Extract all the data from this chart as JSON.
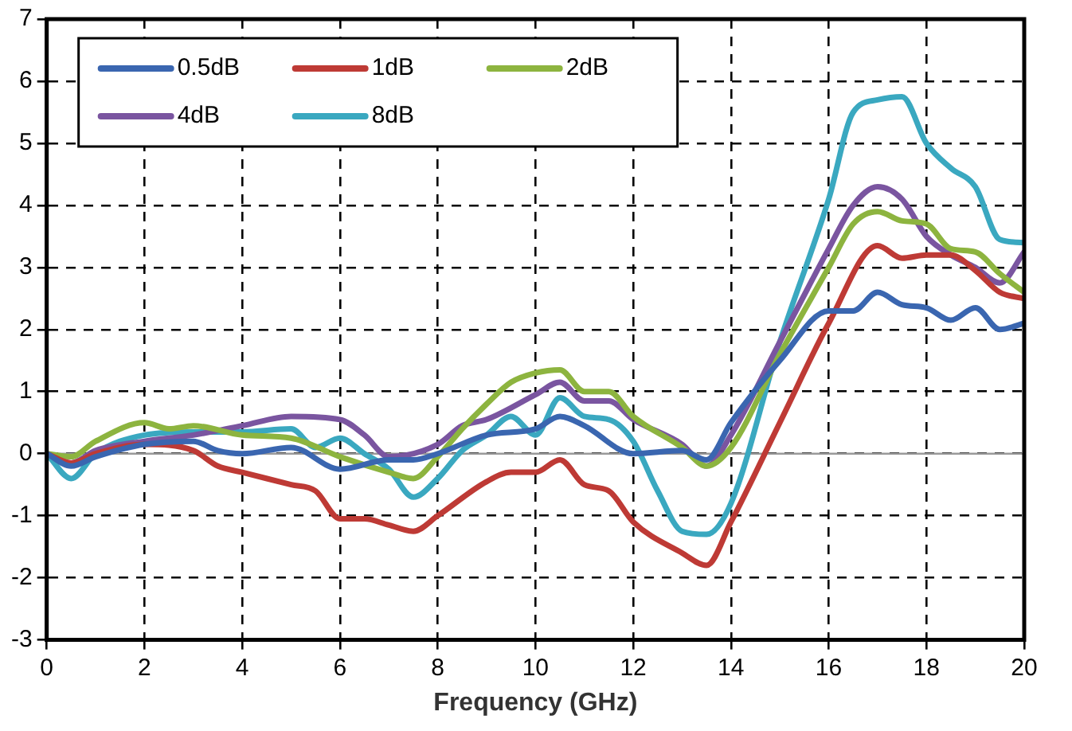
{
  "chart_data": {
    "type": "line",
    "xlabel": "Frequency (GHz)",
    "xlim": [
      0,
      20
    ],
    "xticks": [
      0,
      2,
      4,
      6,
      8,
      10,
      12,
      14,
      16,
      18,
      20
    ],
    "ylim": [
      -3,
      7
    ],
    "yticks": [
      -3,
      -2,
      -1,
      0,
      1,
      2,
      3,
      4,
      5,
      6,
      7
    ],
    "grid": true,
    "legend": "top left",
    "marker": "none",
    "line_style": "solid",
    "ref_lines": [
      {
        "axis": "y",
        "value": 0,
        "color": "#999999"
      }
    ],
    "series": [
      {
        "name": "0.5dB",
        "color": "#3a66b0",
        "x": [
          0,
          0.5,
          1,
          2,
          3,
          3.5,
          4,
          5,
          6,
          7,
          7.5,
          8,
          9,
          10,
          10.5,
          11,
          12,
          13,
          13.5,
          14,
          15,
          16,
          16.5,
          17,
          17.5,
          18,
          18.5,
          19,
          19.5,
          20
        ],
        "values": [
          0,
          -0.2,
          -0.05,
          0.15,
          0.2,
          0.05,
          0,
          0.1,
          -0.25,
          -0.1,
          -0.1,
          0,
          0.3,
          0.4,
          0.6,
          0.45,
          0,
          0.05,
          -0.1,
          0.5,
          1.5,
          2.3,
          2.3,
          2.6,
          2.4,
          2.35,
          2.15,
          2.35,
          2,
          2.1
        ]
      },
      {
        "name": "1dB",
        "color": "#be3a35",
        "x": [
          0,
          0.5,
          1,
          2,
          3,
          3.5,
          4,
          5,
          5.5,
          6,
          6.5,
          7,
          7.5,
          8,
          9,
          9.5,
          10,
          10.5,
          11,
          11.5,
          12,
          13,
          13.5,
          14,
          15,
          16,
          17,
          17.5,
          18,
          18.5,
          19,
          19.5,
          20
        ],
        "values": [
          0,
          -0.15,
          0,
          0.15,
          0.05,
          -0.2,
          -0.3,
          -0.5,
          -0.6,
          -1.05,
          -1.05,
          -1.15,
          -1.25,
          -1,
          -0.45,
          -0.3,
          -0.3,
          -0.1,
          -0.5,
          -0.6,
          -1.1,
          -1.6,
          -1.8,
          -1.1,
          0.5,
          2.1,
          3.35,
          3.15,
          3.2,
          3.2,
          2.95,
          2.6,
          2.5
        ]
      },
      {
        "name": "2dB",
        "color": "#8db43f",
        "x": [
          0,
          0.5,
          1,
          2,
          2.5,
          3,
          4,
          5,
          6,
          7,
          7.5,
          8,
          8.5,
          9,
          9.5,
          10,
          10.5,
          11,
          11.5,
          12,
          13,
          13.5,
          14,
          15,
          16,
          16.5,
          17,
          17.5,
          18,
          18.5,
          19,
          19.5,
          20
        ],
        "values": [
          0,
          -0.05,
          0.2,
          0.5,
          0.4,
          0.45,
          0.3,
          0.25,
          -0.05,
          -0.3,
          -0.4,
          -0.05,
          0.4,
          0.8,
          1.15,
          1.3,
          1.35,
          1,
          1,
          0.6,
          0.1,
          -0.2,
          0.1,
          1.6,
          3,
          3.7,
          3.9,
          3.75,
          3.7,
          3.3,
          3.25,
          2.9,
          2.6
        ]
      },
      {
        "name": "4dB",
        "color": "#7a55a0",
        "x": [
          0,
          0.5,
          1,
          2,
          3,
          4,
          5,
          6,
          6.5,
          7,
          8,
          8.5,
          9,
          10,
          10.5,
          11,
          11.5,
          12,
          13,
          13.5,
          14,
          15,
          16,
          16.5,
          17,
          17.5,
          18,
          18.5,
          19,
          19.5,
          20
        ],
        "values": [
          0,
          -0.15,
          0.05,
          0.2,
          0.3,
          0.45,
          0.6,
          0.55,
          0.3,
          -0.05,
          0.15,
          0.45,
          0.55,
          0.95,
          1.15,
          0.85,
          0.85,
          0.55,
          0.15,
          -0.2,
          0.3,
          1.8,
          3.3,
          4,
          4.3,
          4.1,
          3.5,
          3.2,
          3,
          2.75,
          3.25
        ]
      },
      {
        "name": "8dB",
        "color": "#3aa8c0",
        "x": [
          0,
          0.5,
          1,
          2,
          3,
          4,
          5,
          5.5,
          6,
          6.5,
          7,
          7.5,
          8,
          8.5,
          9,
          9.5,
          10,
          10.5,
          11,
          11.5,
          12,
          12.5,
          13,
          13.5,
          14,
          15,
          16,
          16.5,
          17,
          17.5,
          18,
          18.5,
          19,
          19.5,
          20
        ],
        "values": [
          0,
          -0.4,
          0,
          0.3,
          0.35,
          0.35,
          0.4,
          0.1,
          0.25,
          0,
          -0.25,
          -0.7,
          -0.4,
          0.05,
          0.3,
          0.6,
          0.3,
          0.9,
          0.6,
          0.55,
          0.2,
          -0.6,
          -1.25,
          -1.3,
          -0.8,
          1.8,
          4.1,
          5.5,
          5.7,
          5.75,
          5,
          4.6,
          4.3,
          3.45,
          3.4
        ]
      }
    ]
  }
}
